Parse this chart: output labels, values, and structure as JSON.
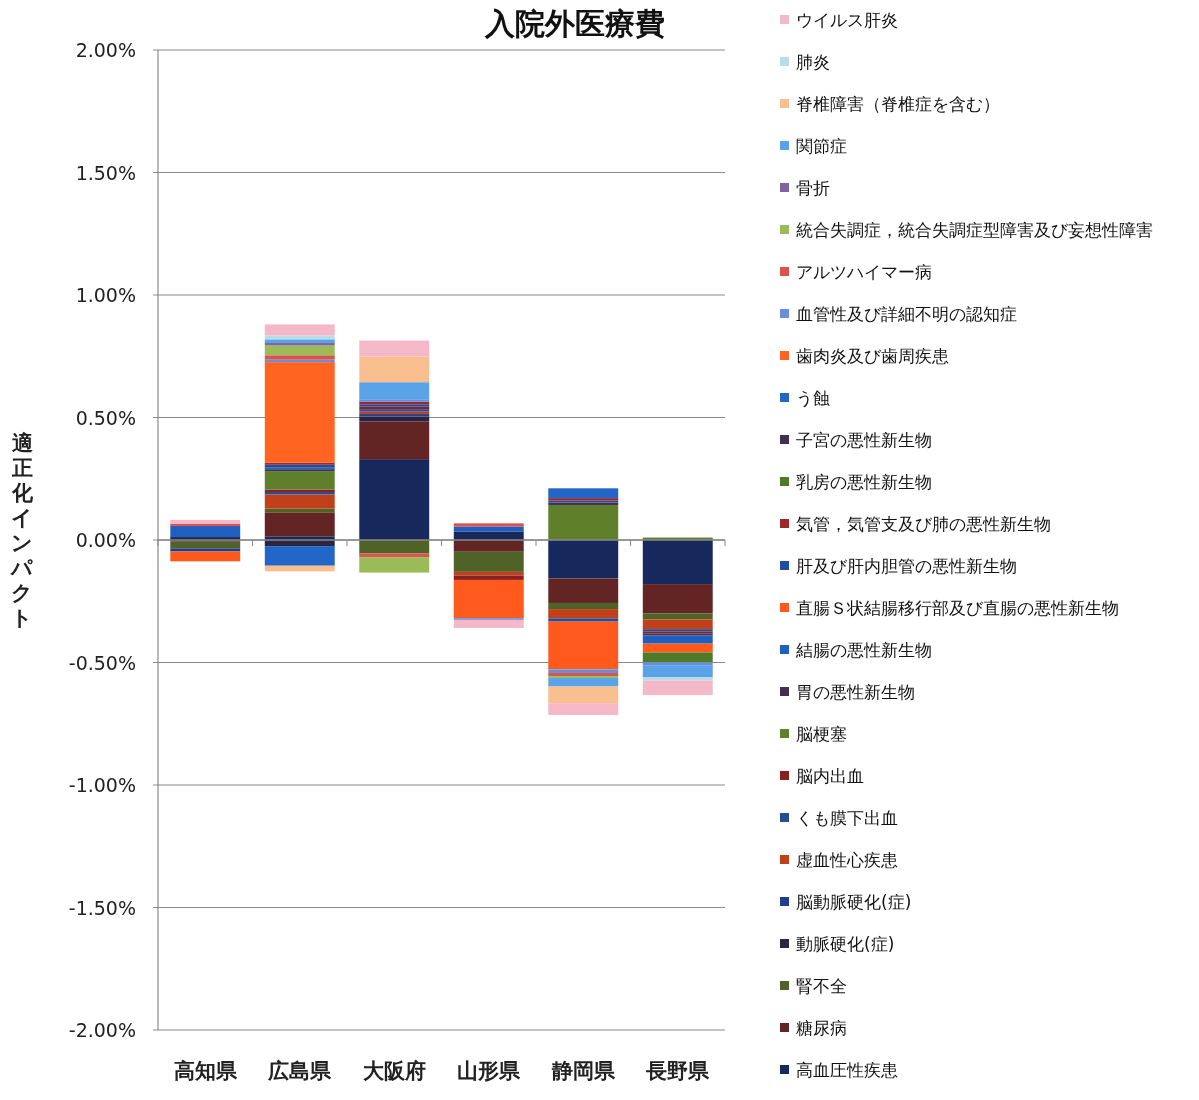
{
  "chart_data": {
    "type": "bar",
    "stacked": true,
    "title": "入院外医療費",
    "ylabel": "適正化インパクト",
    "categories": [
      "高知県",
      "広島県",
      "大阪府",
      "山形県",
      "静岡県",
      "長野県"
    ],
    "ylim": [
      -2,
      2
    ],
    "yticks": [
      {
        "value": -2,
        "label": "-2.00%"
      },
      {
        "value": -1.5,
        "label": "-1.50%"
      },
      {
        "value": -1,
        "label": "-1.00%"
      },
      {
        "value": -0.5,
        "label": "-0.50%"
      },
      {
        "value": 0,
        "label": "0.00%"
      },
      {
        "value": 0.5,
        "label": "0.50%"
      },
      {
        "value": 1,
        "label": "1.00%"
      },
      {
        "value": 1.5,
        "label": "1.50%"
      },
      {
        "value": 2,
        "label": "2.00%"
      }
    ],
    "grid": "y",
    "legend": "right",
    "series": [
      {
        "name": "高血圧性疾患",
        "color": "#17285c",
        "values": [
          0.012,
          0.015,
          0.33,
          0.035,
          -0.157,
          -0.18
        ]
      },
      {
        "name": "糖尿病",
        "color": "#632523",
        "values": [
          -0.007,
          0.098,
          0.154,
          -0.048,
          -0.1,
          -0.12
        ]
      },
      {
        "name": "腎不全",
        "color": "#4f6228",
        "values": [
          -0.027,
          0.015,
          -0.055,
          -0.082,
          -0.025,
          -0.024
        ]
      },
      {
        "name": "動脈硬化(症)",
        "color": "#2d2540",
        "values": [
          null,
          -0.025,
          0.02,
          null,
          null,
          null
        ]
      },
      {
        "name": "脳動脈硬化(症)",
        "color": "#1f3f8a",
        "values": [
          -0.013,
          null,
          0.01,
          null,
          null,
          null
        ]
      },
      {
        "name": "虚血性心疾患",
        "color": "#c0401a",
        "values": [
          null,
          0.058,
          0.01,
          -0.015,
          -0.038,
          -0.04
        ]
      },
      {
        "name": "くも膜下出血",
        "color": "#254d96",
        "values": [
          null,
          0.01,
          0.01,
          null,
          -0.013,
          -0.01
        ]
      },
      {
        "name": "脳内出血",
        "color": "#8b2020",
        "values": [
          null,
          0.01,
          0.01,
          -0.018,
          null,
          -0.008
        ]
      },
      {
        "name": "脳梗塞",
        "color": "#5f7f2a",
        "values": [
          null,
          0.075,
          null,
          null,
          0.143,
          0.01
        ]
      },
      {
        "name": "胃の悪性新生物",
        "color": "#403151",
        "values": [
          null,
          0.008,
          null,
          null,
          0.01,
          -0.008
        ]
      },
      {
        "name": "結腸の悪性新生物",
        "color": "#1f5fc0",
        "values": [
          0.045,
          0.008,
          null,
          0.02,
          null,
          -0.033
        ]
      },
      {
        "name": "直腸Ｓ状結腸移行部及び直腸の悪性新生物",
        "color": "#ff5a1e",
        "values": [
          -0.04,
          null,
          null,
          -0.156,
          -0.195,
          -0.036
        ]
      },
      {
        "name": "肝及び肝内胆管の悪性新生物",
        "color": "#1f4ea0",
        "values": [
          null,
          0.01,
          0.01,
          null,
          0.008,
          null
        ]
      },
      {
        "name": "気管，気管支及び肺の悪性新生物",
        "color": "#a02828",
        "values": [
          null,
          0.009,
          0.01,
          null,
          0.01,
          null
        ]
      },
      {
        "name": "乳房の悪性新生物",
        "color": "#4f7a28",
        "values": [
          null,
          null,
          null,
          null,
          null,
          -0.04
        ]
      },
      {
        "name": "子宮の悪性新生物",
        "color": "#3f3151",
        "values": [
          null,
          null,
          null,
          null,
          null,
          null
        ]
      },
      {
        "name": "う蝕",
        "color": "#2266c8",
        "values": [
          null,
          -0.08,
          null,
          null,
          0.04,
          null
        ]
      },
      {
        "name": "歯肉炎及び歯周疾患",
        "color": "#ff6420",
        "values": [
          null,
          0.41,
          null,
          null,
          null,
          null
        ]
      },
      {
        "name": "血管性及び詳細不明の認知症",
        "color": "#6a8fd8",
        "values": [
          null,
          0.01,
          0.008,
          -0.007,
          -0.015,
          -0.012
        ]
      },
      {
        "name": "アルツハイマー病",
        "color": "#d9534f",
        "values": [
          0.01,
          0.018,
          -0.015,
          0.013,
          -0.012,
          null
        ]
      },
      {
        "name": "統合失調症，統合失調症型障害及び妄想性障害",
        "color": "#9bbb59",
        "values": [
          null,
          0.04,
          -0.063,
          null,
          -0.008,
          null
        ]
      },
      {
        "name": "骨折",
        "color": "#8064a2",
        "values": [
          null,
          0.01,
          null,
          null,
          null,
          null
        ]
      },
      {
        "name": "関節症",
        "color": "#5ba3e8",
        "values": [
          null,
          0.015,
          0.072,
          null,
          -0.035,
          -0.05
        ]
      },
      {
        "name": "脊椎障害（脊椎症を含む）",
        "color": "#fabf8f",
        "values": [
          null,
          -0.023,
          0.105,
          null,
          -0.068,
          null
        ]
      },
      {
        "name": "肺炎",
        "color": "#b7dee8",
        "values": [
          null,
          0.016,
          null,
          null,
          null,
          -0.012
        ]
      },
      {
        "name": "ウイルス肝炎",
        "color": "#f4b8c8",
        "values": [
          0.015,
          0.045,
          0.065,
          -0.033,
          -0.048,
          -0.06
        ]
      }
    ]
  }
}
